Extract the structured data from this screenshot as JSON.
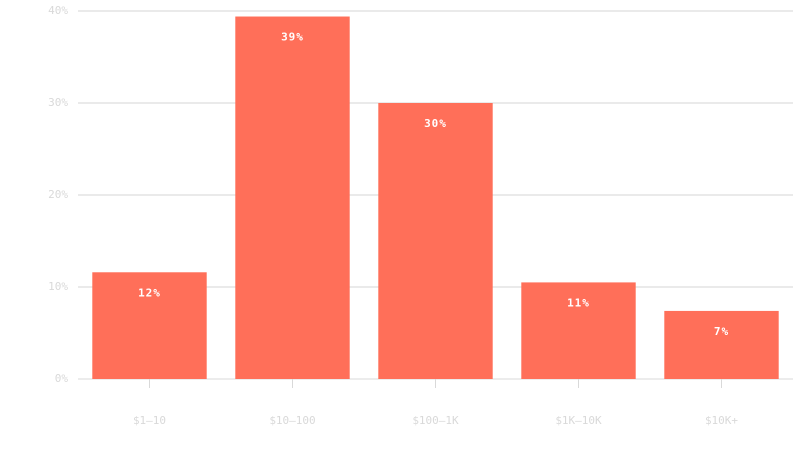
{
  "chart_data": {
    "type": "bar",
    "categories": [
      "$1–10",
      "$10–100",
      "$100–1K",
      "$1K–10K",
      "$10K+"
    ],
    "values": [
      11.6,
      39.4,
      30,
      10.5,
      7.4
    ],
    "value_labels": [
      "12%",
      "39%",
      "30%",
      "11%",
      "7%"
    ],
    "color": "#ff6f59",
    "ylim": [
      0,
      40
    ],
    "yticks": [
      {
        "value": 0,
        "label": "0%"
      },
      {
        "value": 10,
        "label": "10%"
      },
      {
        "value": 20,
        "label": "20%"
      },
      {
        "value": 30,
        "label": "30%"
      },
      {
        "value": 40,
        "label": "40%"
      }
    ],
    "grid": true
  }
}
